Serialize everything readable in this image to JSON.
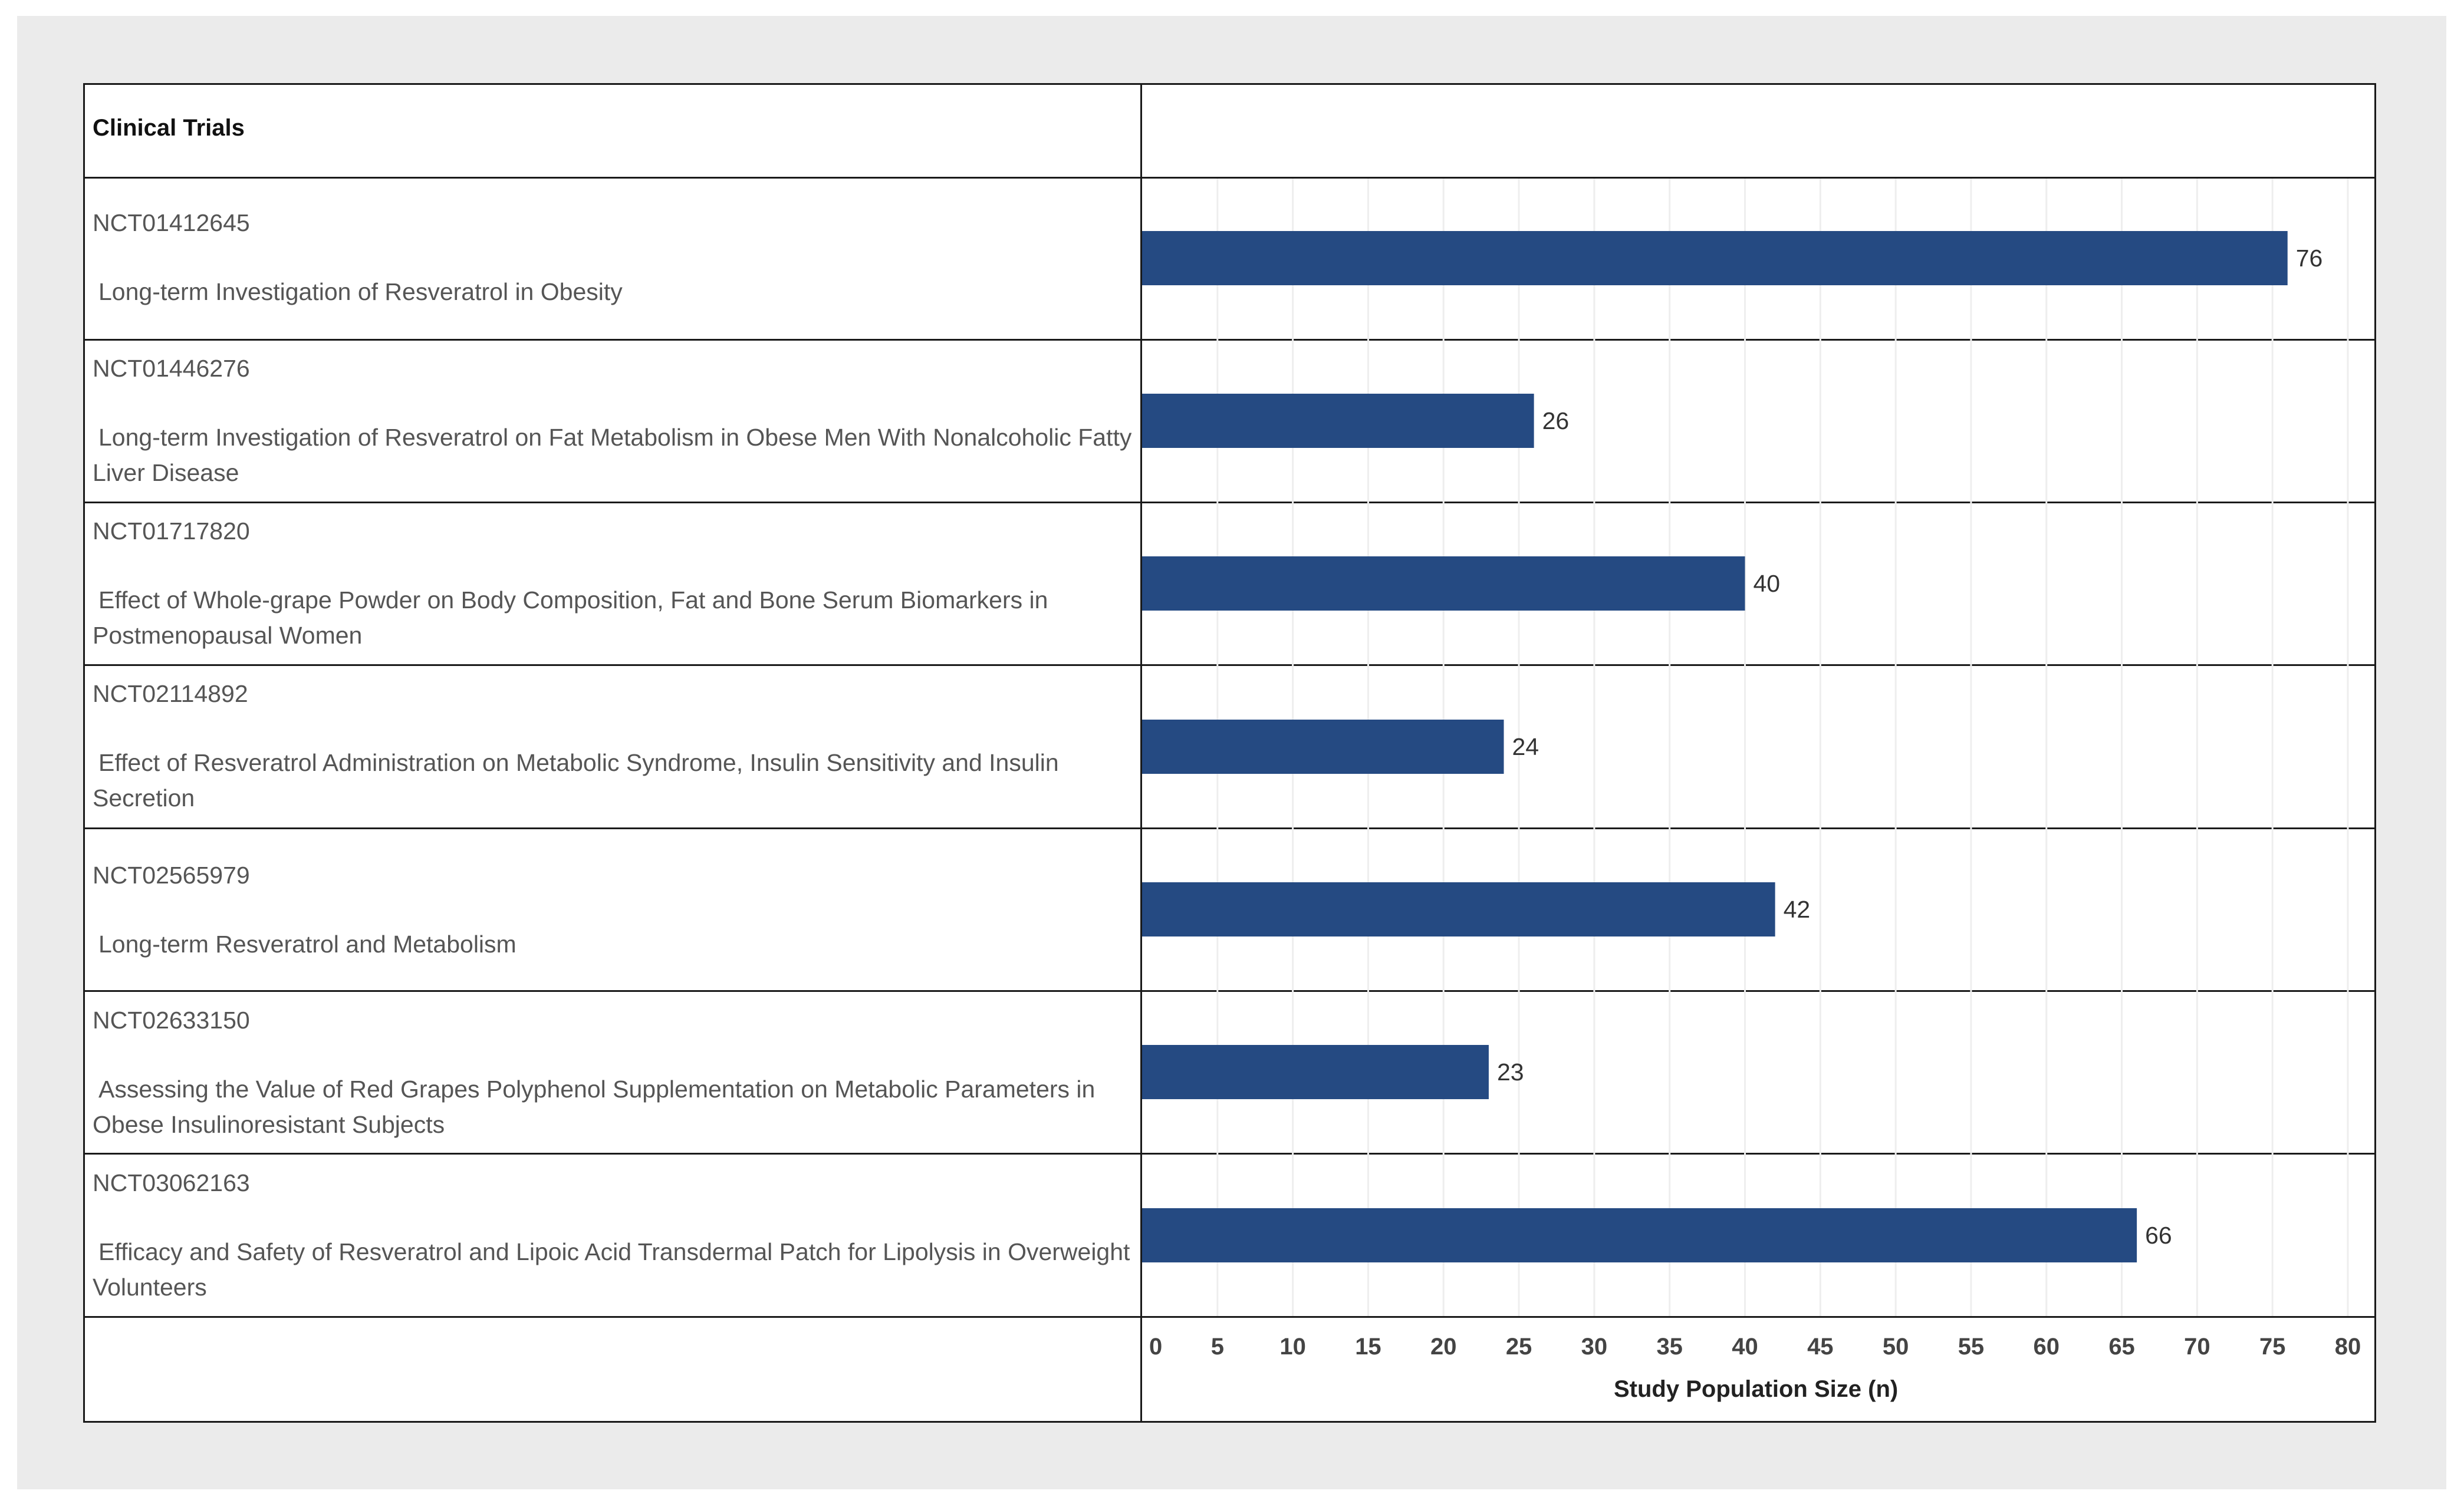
{
  "header": {
    "label": "Clinical Trials"
  },
  "trials": [
    {
      "id": "NCT01412645",
      "title": "Long-term Investigation of Resveratrol in Obesity"
    },
    {
      "id": "NCT01446276",
      "title": "Long-term Investigation of Resveratrol on Fat Metabolism in Obese Men With Nonalcoholic Fatty Liver Disease"
    },
    {
      "id": "NCT01717820",
      "title": "Effect of Whole-grape Powder on Body Composition, Fat and Bone Serum Biomarkers in Postmenopausal Women"
    },
    {
      "id": "NCT02114892",
      "title": "Effect of Resveratrol Administration on Metabolic Syndrome, Insulin Sensitivity and Insulin Secretion"
    },
    {
      "id": "NCT02565979",
      "title": "Long-term Resveratrol and Metabolism"
    },
    {
      "id": "NCT02633150",
      "title": "Assessing the Value of Red Grapes Polyphenol Supplementation on Metabolic Parameters in Obese Insulinoresistant Subjects"
    },
    {
      "id": "NCT03062163",
      "title": "Efficacy and Safety of Resveratrol and Lipoic Acid Transdermal Patch for Lipolysis in Overweight Volunteers"
    }
  ],
  "chart_data": {
    "type": "bar",
    "orientation": "horizontal",
    "categories": [
      "NCT01412645",
      "NCT01446276",
      "NCT01717820",
      "NCT02114892",
      "NCT02565979",
      "NCT02633150",
      "NCT03062163"
    ],
    "values": [
      76,
      26,
      40,
      24,
      42,
      23,
      66
    ],
    "xlabel": "Study Population Size (n)",
    "xlim": [
      0,
      80
    ],
    "xticks": [
      0,
      5,
      10,
      15,
      20,
      25,
      30,
      35,
      40,
      45,
      50,
      55,
      60,
      65,
      70,
      75,
      80
    ],
    "bar_color": "#254a82",
    "grid": true
  }
}
